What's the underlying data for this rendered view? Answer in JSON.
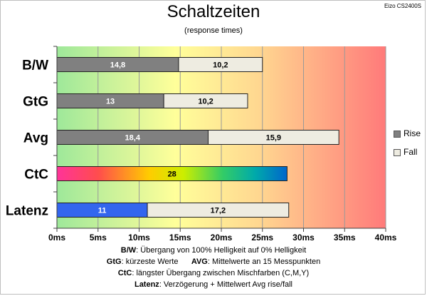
{
  "corner_label": "Eizo CS2400S",
  "notes": [
    {
      "bold": "B/W",
      "text": ":  Übergang von 100% Helligkeit auf 0% Helligkeit"
    },
    {
      "bold": "GtG",
      "text": ": kürzeste  Werte",
      "bold2": "AVG",
      "text2": ":  Mittelwerte  an 15 Messpunkten"
    },
    {
      "bold": "CtC",
      "text": ": längster Übergang  zwischen Mischfarben (C,M,Y)"
    },
    {
      "bold": "Latenz",
      "text": ": Verzögerung  + Mittelwert  Avg rise/fall"
    }
  ],
  "colors": {
    "rise": "#808080",
    "fall": "#eeece1",
    "latenz_rise": "#3366ee",
    "grid": "#999999",
    "axis": "#404040"
  },
  "chart_data": {
    "type": "bar",
    "orientation": "horizontal",
    "stacked": true,
    "title": "Schaltzeiten",
    "subtitle": "(response times)",
    "categories": [
      "B/W",
      "GtG",
      "Avg",
      "CtC",
      "Latenz"
    ],
    "series": [
      {
        "name": "Rise",
        "values": [
          14.8,
          13,
          18.4,
          28,
          11
        ],
        "labels": [
          "14,8",
          "13",
          "18,4",
          "28",
          "11"
        ]
      },
      {
        "name": "Fall",
        "values": [
          10.2,
          10.2,
          15.9,
          null,
          17.2
        ],
        "labels": [
          "10,2",
          "10,2",
          "15,9",
          "",
          "17,2"
        ]
      }
    ],
    "xlim": [
      0,
      40
    ],
    "xticks": [
      0,
      5,
      10,
      15,
      20,
      25,
      30,
      35,
      40
    ],
    "xtick_labels": [
      "0ms",
      "5ms",
      "10ms",
      "15ms",
      "20ms",
      "25ms",
      "30ms",
      "35ms",
      "40ms"
    ],
    "grid": true,
    "legend": "right",
    "background": "gradient green-yellow-red"
  }
}
